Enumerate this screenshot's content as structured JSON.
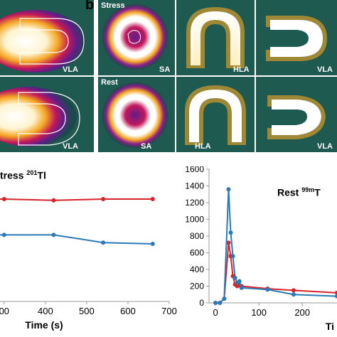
{
  "panel_b": {
    "letter": "b",
    "rows": [
      {
        "label": "Stress",
        "views": [
          "SA",
          "HLA",
          "VLA"
        ]
      },
      {
        "label": "Rest",
        "views": [
          "SA",
          "HLA",
          "VLA"
        ]
      }
    ]
  },
  "panel_a_views": [
    "VLA",
    "VLA"
  ],
  "colors": {
    "red_series": "#d8232a",
    "blue_series": "#2a7ab8",
    "bg_dark": "#1b4a4a"
  },
  "chart_data": [
    {
      "type": "line",
      "title": "tress ²⁰¹Tl",
      "title_main": "tress ",
      "title_sup": "201",
      "title_end": "Tl",
      "xlabel": "Time (s)",
      "xticks": [
        "00",
        "400",
        "500",
        "600",
        "700"
      ],
      "xlim": [
        290,
        700
      ],
      "series": [
        {
          "color": "red",
          "x": [
            300,
            420,
            540,
            660
          ],
          "y": [
            0.8,
            0.79,
            0.8,
            0.8
          ]
        },
        {
          "color": "blue",
          "x": [
            300,
            420,
            540,
            660
          ],
          "y": [
            0.52,
            0.52,
            0.46,
            0.45
          ]
        }
      ]
    },
    {
      "type": "line",
      "title_main": "Rest ",
      "title_sup": "99m",
      "title_end": "T",
      "xlabel": "Ti",
      "yticks": [
        "0",
        "200",
        "400",
        "600",
        "800",
        "1000",
        "1200",
        "1400",
        "1600"
      ],
      "xticks": [
        "0",
        "100",
        "200"
      ],
      "ylim": [
        0,
        1600
      ],
      "xlim": [
        -15,
        280
      ],
      "series": [
        {
          "color": "red",
          "x": [
            0,
            10,
            20,
            30,
            35,
            40,
            45,
            50,
            55,
            60,
            120,
            180,
            280
          ],
          "y": [
            0,
            0,
            50,
            720,
            560,
            320,
            220,
            200,
            210,
            200,
            170,
            150,
            120
          ]
        },
        {
          "color": "blue",
          "x": [
            0,
            10,
            20,
            30,
            35,
            40,
            45,
            50,
            55,
            60,
            120,
            180,
            280
          ],
          "y": [
            0,
            0,
            50,
            1360,
            840,
            560,
            300,
            240,
            260,
            180,
            160,
            100,
            80
          ]
        }
      ]
    }
  ]
}
